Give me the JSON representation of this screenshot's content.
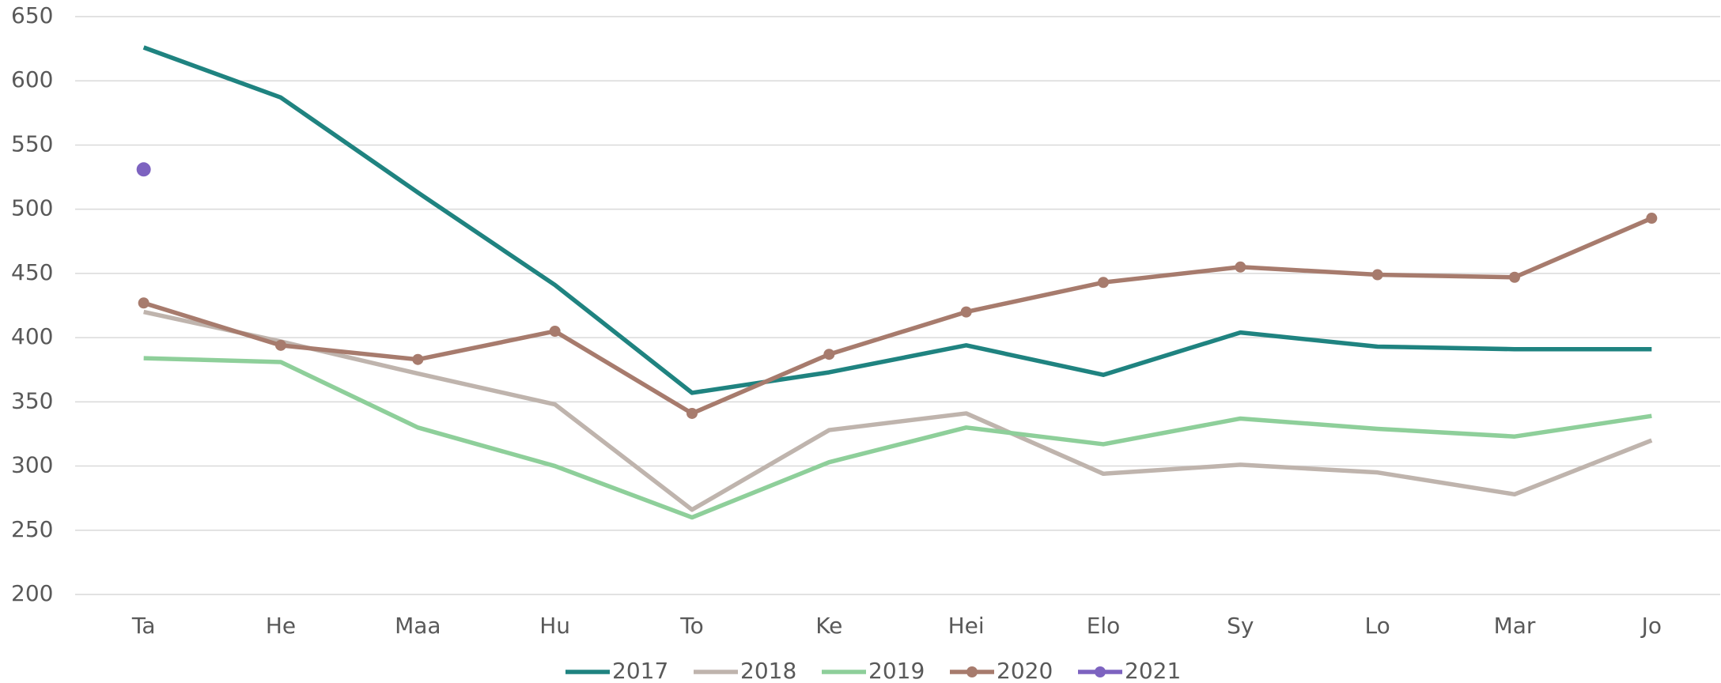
{
  "chart_data": {
    "type": "line",
    "categories": [
      "Ta",
      "He",
      "Maa",
      "Hu",
      "To",
      "Ke",
      "Hei",
      "Elo",
      "Sy",
      "Lo",
      "Mar",
      "Jo"
    ],
    "series": [
      {
        "name": "2017",
        "color": "#1f8380",
        "markers": false,
        "values": [
          626,
          587,
          513,
          441,
          357,
          373,
          394,
          371,
          404,
          393,
          391,
          391
        ]
      },
      {
        "name": "2018",
        "color": "#bfb4ad",
        "markers": false,
        "values": [
          420,
          397,
          372,
          348,
          266,
          328,
          341,
          294,
          301,
          295,
          278,
          320
        ]
      },
      {
        "name": "2019",
        "color": "#8ecf9a",
        "markers": false,
        "values": [
          384,
          381,
          330,
          300,
          260,
          303,
          330,
          317,
          337,
          329,
          323,
          339
        ]
      },
      {
        "name": "2020",
        "color": "#a77b6d",
        "markers": true,
        "values": [
          427,
          394,
          383,
          405,
          341,
          387,
          420,
          443,
          455,
          449,
          447,
          493
        ]
      },
      {
        "name": "2021",
        "color": "#7d63c0",
        "markers": true,
        "values": [
          531,
          null,
          null,
          null,
          null,
          null,
          null,
          null,
          null,
          null,
          null,
          null
        ]
      }
    ],
    "ylim": [
      200,
      650
    ],
    "yticks": [
      200,
      250,
      300,
      350,
      400,
      450,
      500,
      550,
      600,
      650
    ],
    "grid": true,
    "legend": "bottom"
  }
}
